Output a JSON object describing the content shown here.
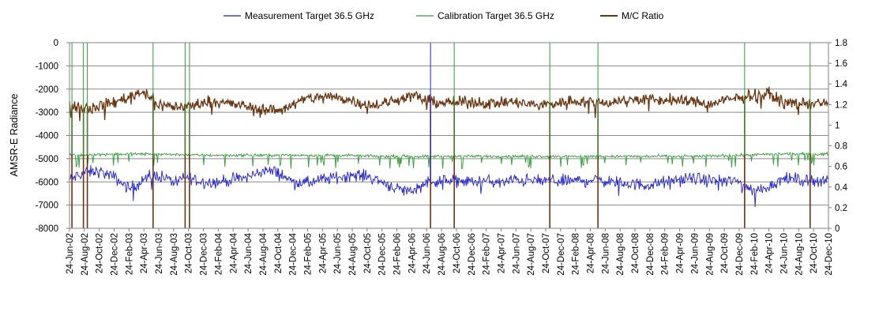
{
  "chart_data": {
    "type": "line",
    "title": "",
    "ylabel": "AMSR-E Radiance",
    "y2label": "",
    "ylim": [
      -8000,
      0
    ],
    "y2lim": [
      0,
      1.8
    ],
    "y_ticks": [
      "0",
      "-1000",
      "-2000",
      "-3000",
      "-4000",
      "-5000",
      "-6000",
      "-7000",
      "-8000"
    ],
    "y2_ticks": [
      "1.8",
      "1.6",
      "1.4",
      "1.2",
      "1",
      "0.8",
      "0.6",
      "0.4",
      "0.2",
      "0"
    ],
    "grid": "horizontal major gridlines",
    "legend_position": "top",
    "x_start": "2002-06-24",
    "x_end": "2010-12-24",
    "x_tick_labels": [
      "24-Jun-02",
      "24-Aug-02",
      "24-Oct-02",
      "24-Dec-02",
      "24-Feb-03",
      "24-Apr-03",
      "24-Jun-03",
      "24-Aug-03",
      "24-Oct-03",
      "24-Dec-03",
      "24-Feb-04",
      "24-Apr-04",
      "24-Jun-04",
      "24-Aug-04",
      "24-Oct-04",
      "24-Dec-04",
      "24-Feb-05",
      "24-Apr-05",
      "24-Jun-05",
      "24-Aug-05",
      "24-Oct-05",
      "24-Dec-05",
      "24-Feb-06",
      "24-Apr-06",
      "24-Jun-06",
      "24-Aug-06",
      "24-Oct-06",
      "24-Dec-06",
      "24-Feb-07",
      "24-Apr-07",
      "24-Jun-07",
      "24-Aug-07",
      "24-Oct-07",
      "24-Dec-07",
      "24-Feb-08",
      "24-Apr-08",
      "24-Jun-08",
      "24-Aug-08",
      "24-Oct-08",
      "24-Dec-08",
      "24-Feb-09",
      "24-Apr-09",
      "24-Jun-09",
      "24-Aug-09",
      "24-Oct-09",
      "24-Dec-09",
      "24-Feb-10",
      "24-Apr-10",
      "24-Jun-10",
      "24-Aug-10",
      "24-Oct-10",
      "24-Dec-10"
    ],
    "series": [
      {
        "name": "Measurement Target 36.5 GHz",
        "axis": "left",
        "color": "#1f1fd6",
        "points": [
          [
            "2002-06-24",
            -5900
          ],
          [
            "2002-08-24",
            -5600
          ],
          [
            "2002-10-24",
            -5550
          ],
          [
            "2002-12-24",
            -5800
          ],
          [
            "2003-02-24",
            -6300
          ],
          [
            "2003-04-24",
            -5900
          ],
          [
            "2003-06-24",
            -5700
          ],
          [
            "2003-08-24",
            -6000
          ],
          [
            "2003-10-24",
            -5800
          ],
          [
            "2003-12-24",
            -6000
          ],
          [
            "2004-02-24",
            -6000
          ],
          [
            "2004-04-24",
            -5900
          ],
          [
            "2004-06-24",
            -5800
          ],
          [
            "2004-08-24",
            -5500
          ],
          [
            "2004-10-24",
            -5600
          ],
          [
            "2004-12-24",
            -6000
          ],
          [
            "2005-02-24",
            -6050
          ],
          [
            "2005-04-24",
            -5900
          ],
          [
            "2005-06-24",
            -5800
          ],
          [
            "2005-08-24",
            -5700
          ],
          [
            "2005-10-24",
            -5750
          ],
          [
            "2005-12-24",
            -6000
          ],
          [
            "2006-02-24",
            -6300
          ],
          [
            "2006-04-24",
            -6400
          ],
          [
            "2006-06-24",
            -6000
          ],
          [
            "2006-08-24",
            -5950
          ],
          [
            "2006-10-24",
            -5950
          ],
          [
            "2006-12-24",
            -6000
          ],
          [
            "2007-02-24",
            -5950
          ],
          [
            "2007-04-24",
            -6050
          ],
          [
            "2007-06-24",
            -5900
          ],
          [
            "2007-08-24",
            -5950
          ],
          [
            "2007-10-24",
            -5950
          ],
          [
            "2007-12-24",
            -5950
          ],
          [
            "2008-02-24",
            -5950
          ],
          [
            "2008-04-24",
            -5900
          ],
          [
            "2008-06-24",
            -5950
          ],
          [
            "2008-08-24",
            -6050
          ],
          [
            "2008-10-24",
            -6100
          ],
          [
            "2008-12-24",
            -6150
          ],
          [
            "2009-02-24",
            -6000
          ],
          [
            "2009-04-24",
            -5900
          ],
          [
            "2009-06-24",
            -5850
          ],
          [
            "2009-08-24",
            -5950
          ],
          [
            "2009-10-24",
            -5950
          ],
          [
            "2009-12-24",
            -6000
          ],
          [
            "2010-02-24",
            -6400
          ],
          [
            "2010-04-24",
            -6200
          ],
          [
            "2010-06-24",
            -5850
          ],
          [
            "2010-08-24",
            -5900
          ],
          [
            "2010-10-24",
            -5950
          ],
          [
            "2010-12-24",
            -5900
          ]
        ]
      },
      {
        "name": "Calibration Target 36.5 GHz",
        "axis": "left",
        "color": "#2e9e35",
        "points": [
          [
            "2002-06-24",
            -4850
          ],
          [
            "2002-12-24",
            -4800
          ],
          [
            "2003-06-24",
            -4800
          ],
          [
            "2003-12-24",
            -4850
          ],
          [
            "2004-06-24",
            -4850
          ],
          [
            "2004-12-24",
            -4850
          ],
          [
            "2005-06-24",
            -4850
          ],
          [
            "2005-12-24",
            -4900
          ],
          [
            "2006-06-24",
            -4900
          ],
          [
            "2006-12-24",
            -4900
          ],
          [
            "2007-06-24",
            -4900
          ],
          [
            "2007-12-24",
            -4900
          ],
          [
            "2008-06-24",
            -4900
          ],
          [
            "2008-12-24",
            -4900
          ],
          [
            "2009-06-24",
            -4900
          ],
          [
            "2009-12-24",
            -4850
          ],
          [
            "2010-06-24",
            -4800
          ],
          [
            "2010-12-24",
            -4800
          ]
        ]
      },
      {
        "name": "M/C Ratio",
        "axis": "right",
        "color": "#6b3510",
        "points": [
          [
            "2002-06-24",
            1.2
          ],
          [
            "2002-08-24",
            1.17
          ],
          [
            "2002-10-24",
            1.19
          ],
          [
            "2002-12-24",
            1.22
          ],
          [
            "2003-02-24",
            1.28
          ],
          [
            "2003-04-24",
            1.33
          ],
          [
            "2003-06-24",
            1.2
          ],
          [
            "2003-08-24",
            1.18
          ],
          [
            "2003-10-24",
            1.18
          ],
          [
            "2003-12-24",
            1.22
          ],
          [
            "2004-02-24",
            1.24
          ],
          [
            "2004-04-24",
            1.2
          ],
          [
            "2004-06-24",
            1.18
          ],
          [
            "2004-08-24",
            1.16
          ],
          [
            "2004-10-24",
            1.14
          ],
          [
            "2004-12-24",
            1.2
          ],
          [
            "2005-02-24",
            1.26
          ],
          [
            "2005-04-24",
            1.28
          ],
          [
            "2005-06-24",
            1.27
          ],
          [
            "2005-08-24",
            1.24
          ],
          [
            "2005-10-24",
            1.2
          ],
          [
            "2005-12-24",
            1.2
          ],
          [
            "2006-02-24",
            1.25
          ],
          [
            "2006-04-24",
            1.29
          ],
          [
            "2006-06-24",
            1.24
          ],
          [
            "2006-08-24",
            1.22
          ],
          [
            "2006-10-24",
            1.22
          ],
          [
            "2006-12-24",
            1.22
          ],
          [
            "2007-02-24",
            1.22
          ],
          [
            "2007-04-24",
            1.22
          ],
          [
            "2007-06-24",
            1.22
          ],
          [
            "2007-08-24",
            1.2
          ],
          [
            "2007-10-24",
            1.2
          ],
          [
            "2007-12-24",
            1.22
          ],
          [
            "2008-02-24",
            1.24
          ],
          [
            "2008-04-24",
            1.22
          ],
          [
            "2008-06-24",
            1.22
          ],
          [
            "2008-08-24",
            1.24
          ],
          [
            "2008-10-24",
            1.25
          ],
          [
            "2008-12-24",
            1.25
          ],
          [
            "2009-02-24",
            1.24
          ],
          [
            "2009-04-24",
            1.24
          ],
          [
            "2009-06-24",
            1.23
          ],
          [
            "2009-08-24",
            1.2
          ],
          [
            "2009-10-24",
            1.24
          ],
          [
            "2009-12-24",
            1.26
          ],
          [
            "2010-02-24",
            1.3
          ],
          [
            "2010-04-24",
            1.3
          ],
          [
            "2010-06-24",
            1.22
          ],
          [
            "2010-08-24",
            1.21
          ],
          [
            "2010-10-24",
            1.21
          ],
          [
            "2010-12-24",
            1.21
          ]
        ]
      }
    ],
    "spikes": [
      {
        "date": "2002-07-04",
        "series": "M/C Ratio",
        "to": 0
      },
      {
        "date": "2002-07-04",
        "series": "Calibration Target 36.5 GHz",
        "to": 0
      },
      {
        "date": "2002-08-20",
        "series": "M/C Ratio",
        "to": 0
      },
      {
        "date": "2002-08-20",
        "series": "Calibration Target 36.5 GHz",
        "to": 0
      },
      {
        "date": "2002-09-05",
        "series": "M/C Ratio",
        "to": 0
      },
      {
        "date": "2002-09-05",
        "series": "Calibration Target 36.5 GHz",
        "to": 0
      },
      {
        "date": "2003-06-01",
        "series": "M/C Ratio",
        "to": 0
      },
      {
        "date": "2003-06-01",
        "series": "Calibration Target 36.5 GHz",
        "to": 0
      },
      {
        "date": "2003-10-10",
        "series": "M/C Ratio",
        "to": 0
      },
      {
        "date": "2003-10-10",
        "series": "Calibration Target 36.5 GHz",
        "to": 0
      },
      {
        "date": "2003-10-28",
        "series": "M/C Ratio",
        "to": 0
      },
      {
        "date": "2003-10-28",
        "series": "Calibration Target 36.5 GHz",
        "to": 0
      },
      {
        "date": "2006-07-10",
        "series": "M/C Ratio",
        "to": 0
      },
      {
        "date": "2006-07-10",
        "series": "Measurement Target 36.5 GHz",
        "to": 0
      },
      {
        "date": "2006-10-15",
        "series": "M/C Ratio",
        "to": 0
      },
      {
        "date": "2006-10-15",
        "series": "Calibration Target 36.5 GHz",
        "to": 0
      },
      {
        "date": "2007-11-10",
        "series": "M/C Ratio",
        "to": 0
      },
      {
        "date": "2007-11-10",
        "series": "Calibration Target 36.5 GHz",
        "to": 0
      },
      {
        "date": "2008-05-25",
        "series": "M/C Ratio",
        "to": 0
      },
      {
        "date": "2008-05-25",
        "series": "Calibration Target 36.5 GHz",
        "to": 0
      },
      {
        "date": "2010-01-15",
        "series": "M/C Ratio",
        "to": 0
      },
      {
        "date": "2010-01-15",
        "series": "Calibration Target 36.5 GHz",
        "to": 0
      },
      {
        "date": "2010-10-10",
        "series": "M/C Ratio",
        "to": 0
      },
      {
        "date": "2010-10-10",
        "series": "Calibration Target 36.5 GHz",
        "to": 0
      }
    ]
  }
}
